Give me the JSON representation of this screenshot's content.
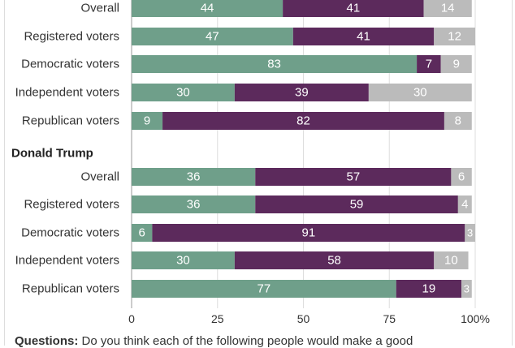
{
  "chart_data": {
    "type": "bar",
    "orientation": "horizontal",
    "stacked": true,
    "xlim": [
      0,
      100
    ],
    "x_ticks": [
      "0",
      "25",
      "50",
      "75",
      "100%"
    ],
    "grid": true,
    "colors": [
      "#6f9f8a",
      "#5c2a5c",
      "#bbbbbb"
    ],
    "groups": [
      {
        "title": "",
        "rows": [
          {
            "label": "Overall",
            "values": [
              44,
              41,
              14
            ]
          },
          {
            "label": "Registered voters",
            "values": [
              47,
              41,
              12
            ]
          },
          {
            "label": "Democratic voters",
            "values": [
              83,
              7,
              9
            ]
          },
          {
            "label": "Independent voters",
            "values": [
              30,
              39,
              30
            ]
          },
          {
            "label": "Republican voters",
            "values": [
              9,
              82,
              8
            ]
          }
        ]
      },
      {
        "title": "Donald Trump",
        "rows": [
          {
            "label": "Overall",
            "values": [
              36,
              57,
              6
            ]
          },
          {
            "label": "Registered voters",
            "values": [
              36,
              59,
              4
            ]
          },
          {
            "label": "Democratic voters",
            "values": [
              6,
              91,
              3
            ]
          },
          {
            "label": "Independent voters",
            "values": [
              30,
              58,
              10
            ]
          },
          {
            "label": "Republican voters",
            "values": [
              77,
              19,
              3
            ]
          }
        ]
      }
    ]
  },
  "footnote": {
    "label": "Questions:",
    "text": " Do you think each of the following people would make a good"
  }
}
